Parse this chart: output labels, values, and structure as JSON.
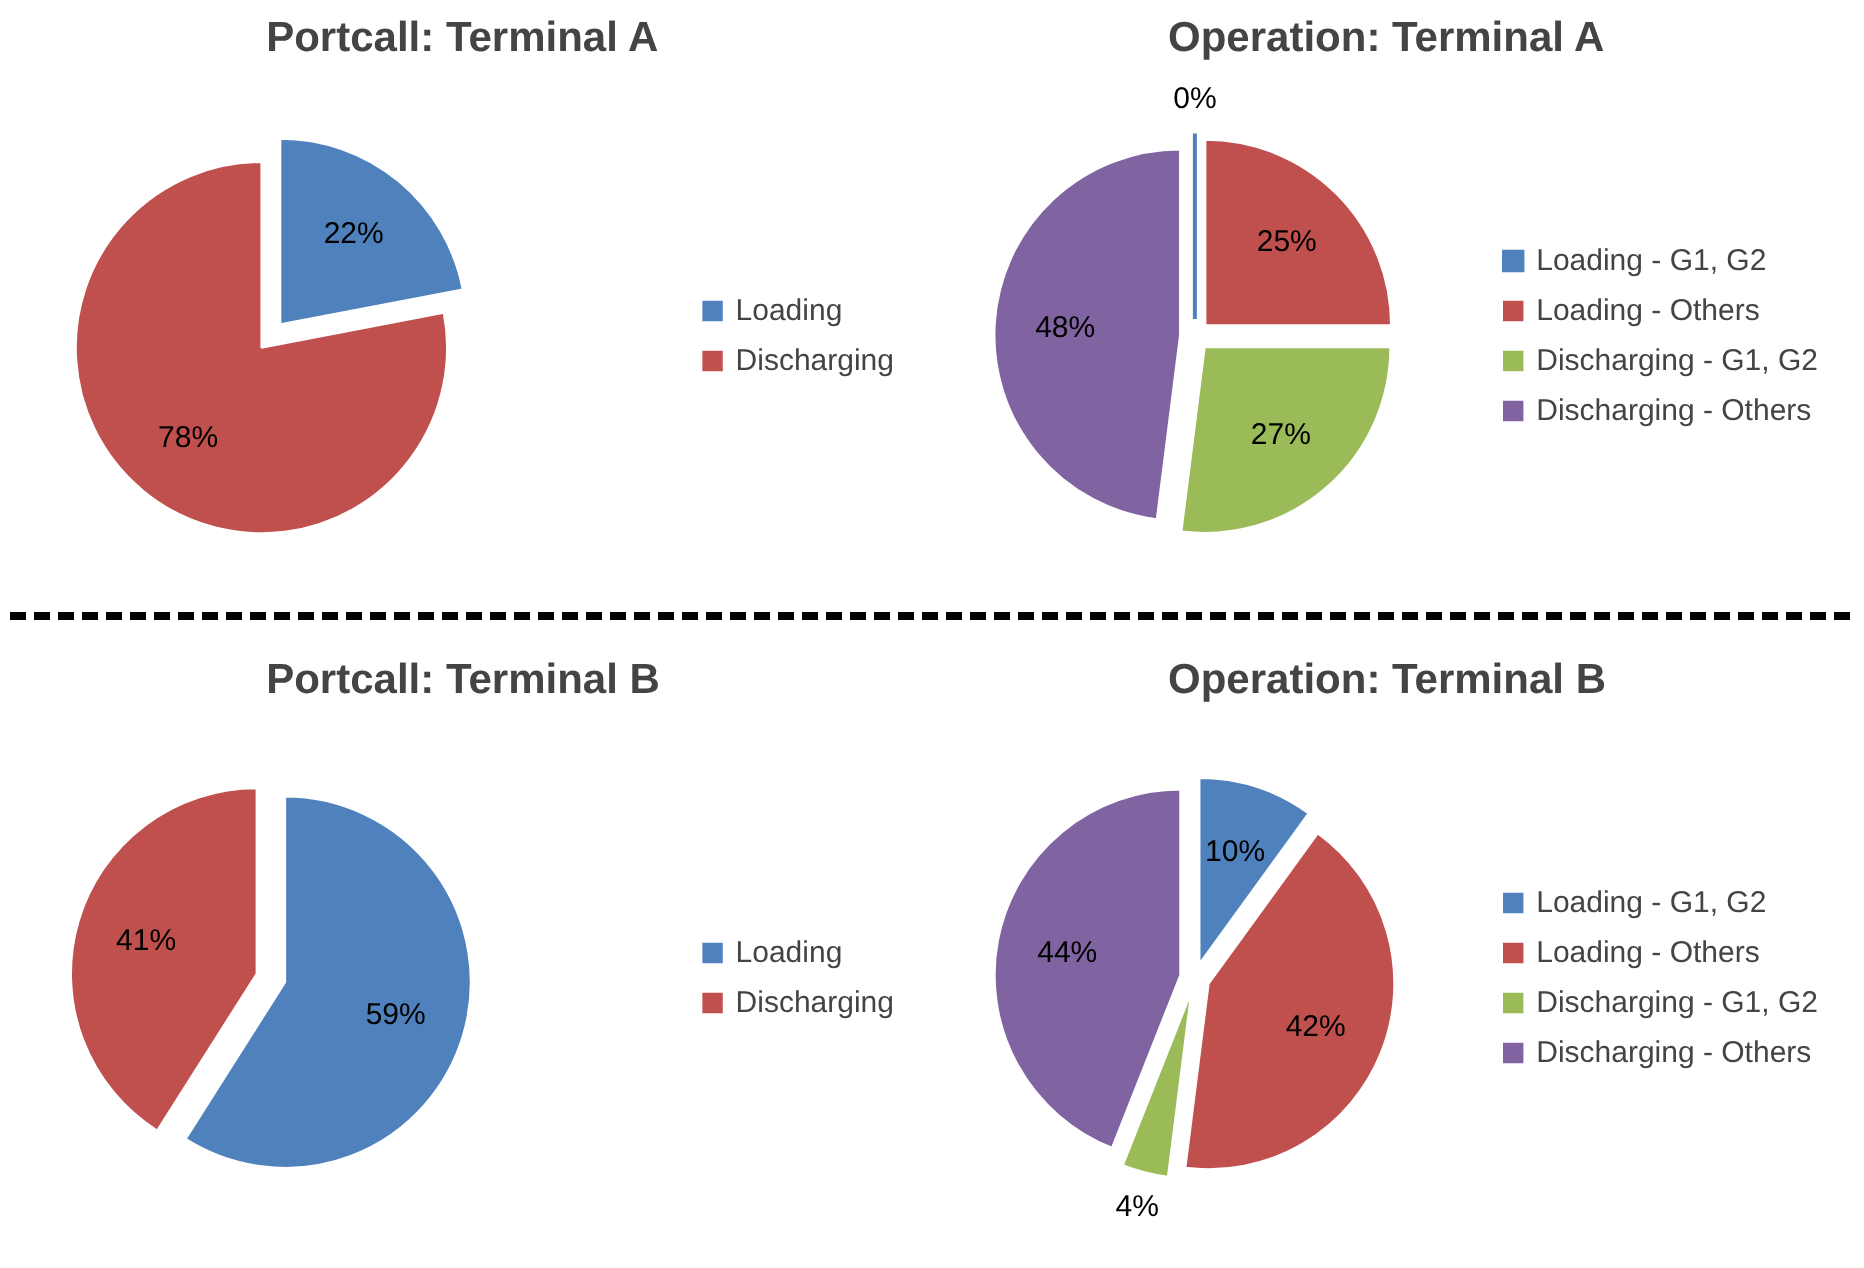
{
  "chart_data": [
    {
      "type": "pie",
      "title": "Portcall: Terminal A",
      "categories": [
        "Loading",
        "Discharging"
      ],
      "values": [
        22,
        78
      ],
      "value_labels": [
        "22%",
        "78%"
      ],
      "colors": [
        "#4f81bd",
        "#c0504d"
      ],
      "legend": "right"
    },
    {
      "type": "pie",
      "title": "Operation: Terminal A",
      "categories": [
        "Loading - G1, G2",
        "Loading - Others",
        "Discharging - G1, G2",
        "Discharging - Others"
      ],
      "values": [
        0,
        25,
        27,
        48
      ],
      "value_labels": [
        "0%",
        "25%",
        "27%",
        "48%"
      ],
      "colors": [
        "#4f81bd",
        "#c0504d",
        "#9bbb59",
        "#8064a2"
      ],
      "legend": "right"
    },
    {
      "type": "pie",
      "title": "Portcall: Terminal B",
      "categories": [
        "Loading",
        "Discharging"
      ],
      "values": [
        59,
        41
      ],
      "value_labels": [
        "59%",
        "41%"
      ],
      "colors": [
        "#4f81bd",
        "#c0504d"
      ],
      "legend": "right"
    },
    {
      "type": "pie",
      "title": "Operation: Terminal B",
      "categories": [
        "Loading - G1, G2",
        "Loading - Others",
        "Discharging - G1, G2",
        "Discharging - Others"
      ],
      "values": [
        10,
        42,
        4,
        44
      ],
      "value_labels": [
        "10%",
        "42%",
        "4%",
        "44%"
      ],
      "colors": [
        "#4f81bd",
        "#c0504d",
        "#9bbb59",
        "#8064a2"
      ],
      "legend": "right"
    }
  ]
}
